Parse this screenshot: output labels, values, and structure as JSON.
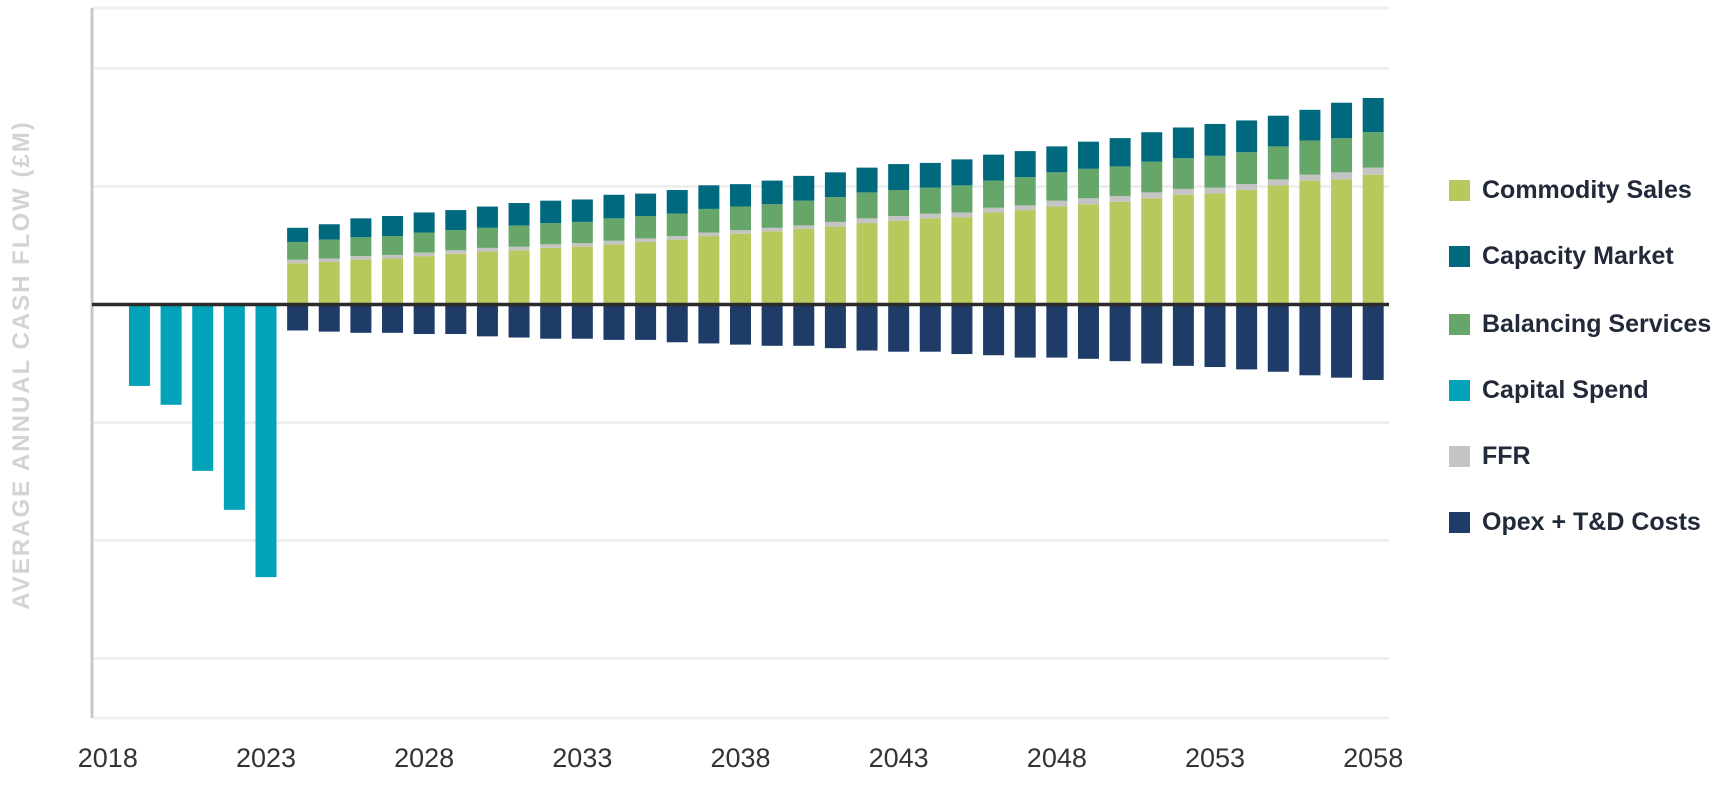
{
  "chart_data": {
    "type": "bar",
    "stacked": true,
    "ylabel": "AVERAGE ANNUAL CASH FLOW (£M)",
    "xlabel": "",
    "x_tick_labels": [
      "2018",
      "2023",
      "2028",
      "2033",
      "2038",
      "2043",
      "2048",
      "2053",
      "2058"
    ],
    "y_tick_labels_shown": false,
    "grid": true,
    "legend_position": "right",
    "x": [
      2019,
      2020,
      2021,
      2022,
      2023,
      2024,
      2025,
      2026,
      2027,
      2028,
      2029,
      2030,
      2031,
      2032,
      2033,
      2034,
      2035,
      2036,
      2037,
      2038,
      2039,
      2040,
      2041,
      2042,
      2043,
      2044,
      2045,
      2046,
      2047,
      2048,
      2049,
      2050,
      2051,
      2052,
      2053,
      2054,
      2055,
      2056,
      2057,
      2058
    ],
    "xlim": [
      2017.5,
      2058.5
    ],
    "ylim": [
      -3.5,
      2.5
    ],
    "series": [
      {
        "name": "Commodity Sales",
        "color": "#b9c85c",
        "values": [
          0,
          0,
          0,
          0,
          0,
          0.35,
          0.36,
          0.38,
          0.39,
          0.41,
          0.43,
          0.45,
          0.46,
          0.48,
          0.49,
          0.51,
          0.53,
          0.55,
          0.58,
          0.6,
          0.62,
          0.64,
          0.66,
          0.69,
          0.71,
          0.73,
          0.74,
          0.78,
          0.8,
          0.83,
          0.85,
          0.87,
          0.9,
          0.93,
          0.94,
          0.97,
          1.01,
          1.05,
          1.06,
          1.1
        ]
      },
      {
        "name": "FFR",
        "color": "#c4c4c4",
        "values": [
          0,
          0,
          0,
          0,
          0,
          0.03,
          0.03,
          0.03,
          0.03,
          0.03,
          0.03,
          0.03,
          0.03,
          0.03,
          0.03,
          0.03,
          0.03,
          0.03,
          0.03,
          0.03,
          0.03,
          0.03,
          0.04,
          0.04,
          0.04,
          0.04,
          0.04,
          0.04,
          0.04,
          0.05,
          0.05,
          0.05,
          0.05,
          0.05,
          0.05,
          0.05,
          0.05,
          0.05,
          0.06,
          0.06
        ]
      },
      {
        "name": "Balancing Services",
        "color": "#66a668",
        "values": [
          0,
          0,
          0,
          0,
          0,
          0.15,
          0.16,
          0.16,
          0.16,
          0.17,
          0.17,
          0.17,
          0.18,
          0.18,
          0.18,
          0.19,
          0.19,
          0.19,
          0.2,
          0.2,
          0.2,
          0.21,
          0.21,
          0.22,
          0.22,
          0.22,
          0.23,
          0.23,
          0.24,
          0.24,
          0.25,
          0.25,
          0.26,
          0.26,
          0.27,
          0.27,
          0.28,
          0.29,
          0.29,
          0.3
        ]
      },
      {
        "name": "Capacity Market",
        "color": "#00697e",
        "values": [
          0,
          0,
          0,
          0,
          0,
          0.12,
          0.13,
          0.16,
          0.17,
          0.17,
          0.17,
          0.18,
          0.19,
          0.19,
          0.19,
          0.2,
          0.19,
          0.2,
          0.2,
          0.19,
          0.2,
          0.21,
          0.21,
          0.21,
          0.22,
          0.21,
          0.22,
          0.22,
          0.22,
          0.22,
          0.23,
          0.24,
          0.25,
          0.26,
          0.27,
          0.27,
          0.26,
          0.26,
          0.3,
          0.29
        ]
      },
      {
        "name": "Capital Spend",
        "color": "#02a2b9",
        "values": [
          -0.69,
          -0.85,
          -1.41,
          -1.74,
          -2.31,
          0,
          0,
          0,
          0,
          0,
          0,
          0,
          0,
          0,
          0,
          0,
          0,
          0,
          0,
          0,
          0,
          0,
          0,
          0,
          0,
          0,
          0,
          0,
          0,
          0,
          0,
          0,
          0,
          0,
          0,
          0,
          0,
          0,
          0,
          0
        ]
      },
      {
        "name": "Opex + T&D Costs",
        "color": "#1f3c68",
        "values": [
          0,
          0,
          0,
          0,
          0,
          -0.22,
          -0.23,
          -0.24,
          -0.24,
          -0.25,
          -0.25,
          -0.27,
          -0.28,
          -0.29,
          -0.29,
          -0.3,
          -0.3,
          -0.32,
          -0.33,
          -0.34,
          -0.35,
          -0.35,
          -0.37,
          -0.39,
          -0.4,
          -0.4,
          -0.42,
          -0.43,
          -0.45,
          -0.45,
          -0.46,
          -0.48,
          -0.5,
          -0.52,
          -0.53,
          -0.55,
          -0.57,
          -0.6,
          -0.62,
          -0.64
        ]
      }
    ],
    "legend_order": [
      "Commodity Sales",
      "Capacity Market",
      "Balancing Services",
      "Capital Spend",
      "FFR",
      "Opex + T&D Costs"
    ]
  }
}
